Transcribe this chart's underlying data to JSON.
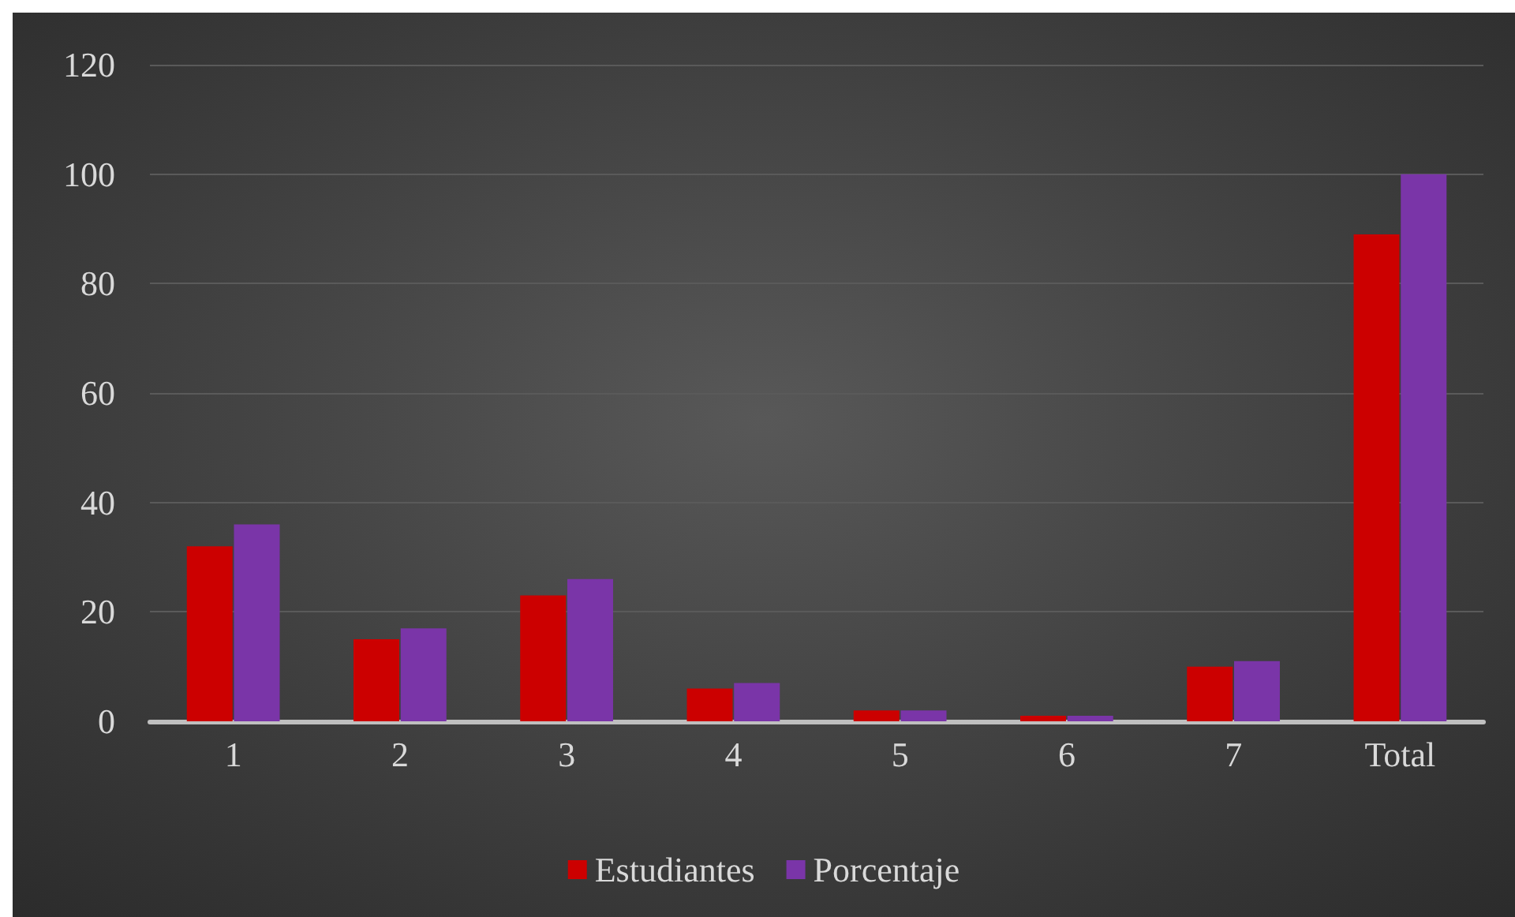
{
  "chart_data": {
    "type": "bar",
    "categories": [
      "1",
      "2",
      "3",
      "4",
      "5",
      "6",
      "7",
      "Total"
    ],
    "series": [
      {
        "name": "Estudiantes",
        "color": "#cc0000",
        "values": [
          32,
          15,
          23,
          6,
          2,
          1,
          10,
          89
        ]
      },
      {
        "name": "Porcentaje",
        "color": "#7a35a8",
        "values": [
          36,
          17,
          26,
          7,
          2,
          1,
          11,
          100
        ]
      }
    ],
    "ylim": [
      0,
      120
    ],
    "yticks": [
      0,
      20,
      40,
      60,
      80,
      100,
      120
    ],
    "grid": "y",
    "legend": "bottom"
  }
}
